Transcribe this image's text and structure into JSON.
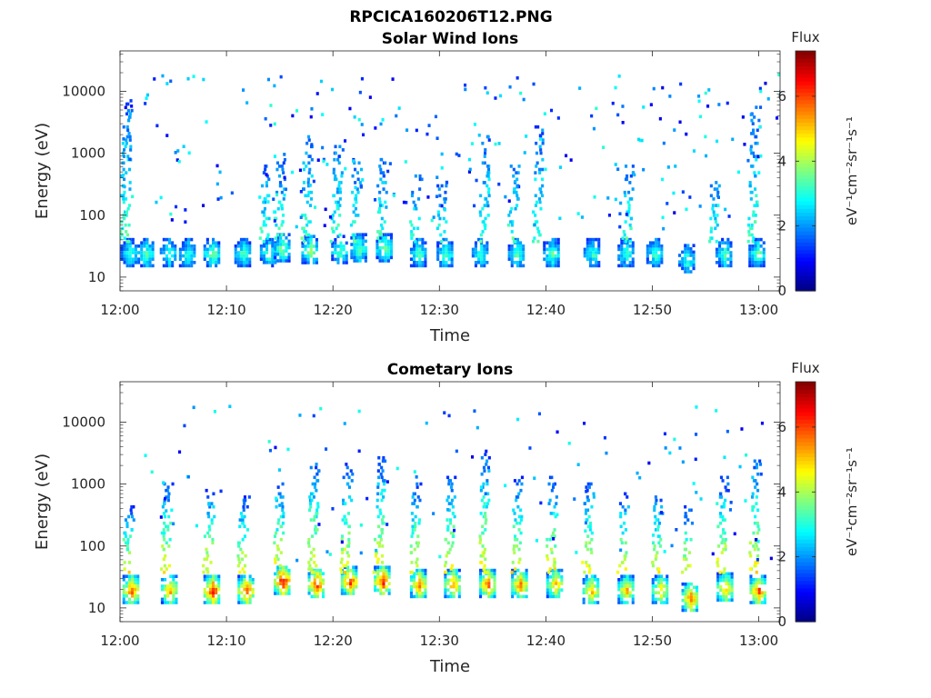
{
  "figure": {
    "title": "RPCICA160206T12.PNG",
    "colormap": "jet",
    "background": "#ffffff"
  },
  "chart_data": [
    {
      "type": "heatmap",
      "title": "Solar Wind Ions",
      "xlabel": "Time",
      "ylabel": "Energy (eV)",
      "x_ticks": [
        "12:00",
        "12:10",
        "12:20",
        "12:30",
        "12:40",
        "12:50",
        "13:00"
      ],
      "x_range": [
        "12:00",
        "13:02"
      ],
      "y_scale": "log",
      "y_ticks": [
        "10",
        "100",
        "1000",
        "10000"
      ],
      "y_range": [
        6,
        45000
      ],
      "colorbar": {
        "title": "Flux",
        "label": "eV⁻¹cm⁻²sr⁻¹s⁻¹",
        "ticks": [
          "0",
          "2",
          "4",
          "6"
        ],
        "range": [
          0,
          7.4
        ]
      },
      "blobs": [
        {
          "t": 0.8,
          "e": 25,
          "v": 3.3
        },
        {
          "t": 2.4,
          "e": 25,
          "v": 3.5
        },
        {
          "t": 4.5,
          "e": 25,
          "v": 3.4
        },
        {
          "t": 6.3,
          "e": 25,
          "v": 3.3
        },
        {
          "t": 8.6,
          "e": 25,
          "v": 3.8
        },
        {
          "t": 11.5,
          "e": 25,
          "v": 3.5
        },
        {
          "t": 13.9,
          "e": 25,
          "v": 3.4
        },
        {
          "t": 15.2,
          "e": 30,
          "v": 3.8
        },
        {
          "t": 17.8,
          "e": 28,
          "v": 4.0
        },
        {
          "t": 20.6,
          "e": 28,
          "v": 3.6
        },
        {
          "t": 22.4,
          "e": 30,
          "v": 3.6
        },
        {
          "t": 24.8,
          "e": 30,
          "v": 3.8
        },
        {
          "t": 28.0,
          "e": 25,
          "v": 3.5
        },
        {
          "t": 30.5,
          "e": 25,
          "v": 3.5
        },
        {
          "t": 33.8,
          "e": 25,
          "v": 3.3
        },
        {
          "t": 37.2,
          "e": 25,
          "v": 3.6
        },
        {
          "t": 40.5,
          "e": 25,
          "v": 3.6
        },
        {
          "t": 44.3,
          "e": 25,
          "v": 3.4
        },
        {
          "t": 47.5,
          "e": 25,
          "v": 3.4
        },
        {
          "t": 50.2,
          "e": 25,
          "v": 3.3
        },
        {
          "t": 53.2,
          "e": 20,
          "v": 3.4
        },
        {
          "t": 56.7,
          "e": 25,
          "v": 3.5
        },
        {
          "t": 59.8,
          "e": 25,
          "v": 3.6
        }
      ],
      "spikes": [
        {
          "t": 0.8,
          "top": 8000
        },
        {
          "t": 11.5,
          "top": 30
        },
        {
          "t": 13.9,
          "top": 800
        },
        {
          "t": 15.2,
          "top": 900
        },
        {
          "t": 17.8,
          "top": 2200
        },
        {
          "t": 20.6,
          "top": 1500
        },
        {
          "t": 22.4,
          "top": 900
        },
        {
          "t": 24.8,
          "top": 900
        },
        {
          "t": 28.0,
          "top": 500
        },
        {
          "t": 30.5,
          "top": 400
        },
        {
          "t": 34.5,
          "top": 2000
        },
        {
          "t": 37.2,
          "top": 800
        },
        {
          "t": 39.5,
          "top": 3000
        },
        {
          "t": 48.0,
          "top": 700
        },
        {
          "t": 56.0,
          "top": 400
        },
        {
          "t": 59.8,
          "top": 6000
        }
      ]
    },
    {
      "type": "heatmap",
      "title": "Cometary Ions",
      "xlabel": "Time",
      "ylabel": "Energy (eV)",
      "x_ticks": [
        "12:00",
        "12:10",
        "12:20",
        "12:30",
        "12:40",
        "12:50",
        "13:00"
      ],
      "x_range": [
        "12:00",
        "13:02"
      ],
      "y_scale": "log",
      "y_ticks": [
        "10",
        "100",
        "1000",
        "10000"
      ],
      "y_range": [
        6,
        45000
      ],
      "colorbar": {
        "title": "Flux",
        "label": "eV⁻¹cm⁻²sr⁻¹s⁻¹",
        "ticks": [
          "0",
          "2",
          "4",
          "6"
        ],
        "range": [
          0,
          7.4
        ]
      },
      "blobs": [
        {
          "t": 1.0,
          "e": 20,
          "v": 6.0
        },
        {
          "t": 4.6,
          "e": 20,
          "v": 5.5
        },
        {
          "t": 8.6,
          "e": 20,
          "v": 6.6
        },
        {
          "t": 11.8,
          "e": 20,
          "v": 6.3
        },
        {
          "t": 15.2,
          "e": 28,
          "v": 6.8
        },
        {
          "t": 18.4,
          "e": 25,
          "v": 6.5
        },
        {
          "t": 21.5,
          "e": 28,
          "v": 6.4
        },
        {
          "t": 24.6,
          "e": 28,
          "v": 6.5
        },
        {
          "t": 28.0,
          "e": 25,
          "v": 5.8
        },
        {
          "t": 31.2,
          "e": 25,
          "v": 5.7
        },
        {
          "t": 34.5,
          "e": 25,
          "v": 6.0
        },
        {
          "t": 37.5,
          "e": 25,
          "v": 5.8
        },
        {
          "t": 40.8,
          "e": 25,
          "v": 5.4
        },
        {
          "t": 44.2,
          "e": 20,
          "v": 5.3
        },
        {
          "t": 47.5,
          "e": 20,
          "v": 5.4
        },
        {
          "t": 50.7,
          "e": 20,
          "v": 5.2
        },
        {
          "t": 53.5,
          "e": 15,
          "v": 6.0
        },
        {
          "t": 56.8,
          "e": 22,
          "v": 5.5
        },
        {
          "t": 59.9,
          "e": 20,
          "v": 6.2
        }
      ],
      "spikes": [
        {
          "t": 1.0,
          "top": 500
        },
        {
          "t": 4.6,
          "top": 1200
        },
        {
          "t": 8.6,
          "top": 900
        },
        {
          "t": 11.8,
          "top": 700
        },
        {
          "t": 15.2,
          "top": 1200
        },
        {
          "t": 18.4,
          "top": 2500
        },
        {
          "t": 21.5,
          "top": 2500
        },
        {
          "t": 24.6,
          "top": 3000
        },
        {
          "t": 28.0,
          "top": 1200
        },
        {
          "t": 31.2,
          "top": 1500
        },
        {
          "t": 34.5,
          "top": 4000
        },
        {
          "t": 37.5,
          "top": 1500
        },
        {
          "t": 40.8,
          "top": 1500
        },
        {
          "t": 44.2,
          "top": 1200
        },
        {
          "t": 47.5,
          "top": 800
        },
        {
          "t": 50.7,
          "top": 700
        },
        {
          "t": 53.5,
          "top": 500
        },
        {
          "t": 56.8,
          "top": 1500
        },
        {
          "t": 59.9,
          "top": 3000
        }
      ]
    }
  ]
}
